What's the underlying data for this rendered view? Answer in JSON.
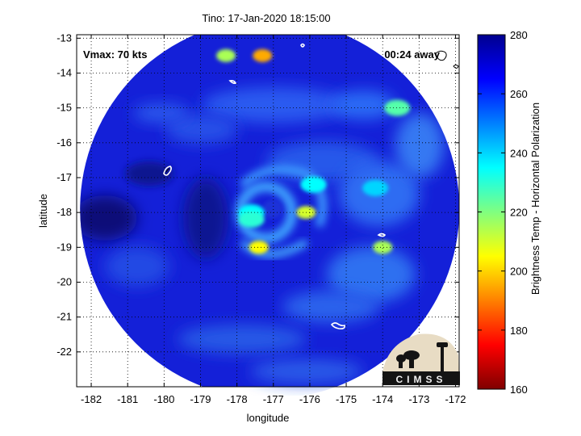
{
  "title": "Tino: 17-Jan-2020 18:15:00",
  "annotations": {
    "vmax": "Vmax: 70 kts",
    "time_away": "00:24 away"
  },
  "logo_text": "CIMSS",
  "colors": {
    "colormap": [
      "#7f0000",
      "#ff0000",
      "#ff8000",
      "#ffff00",
      "#80ff80",
      "#00ffff",
      "#0080ff",
      "#0000ff",
      "#00008f"
    ]
  },
  "chart_data": {
    "type": "heatmap",
    "title": "Tino: 17-Jan-2020 18:15:00",
    "xlabel": "longitude",
    "ylabel": "latitude",
    "xlim": [
      -182.4,
      -171.9
    ],
    "ylim": [
      -23,
      -12.9
    ],
    "x_ticks": [
      "-182",
      "-181",
      "-180",
      "-179",
      "-178",
      "-177",
      "-176",
      "-175",
      "-174",
      "-173",
      "-172"
    ],
    "y_ticks": [
      "-13",
      "-14",
      "-15",
      "-16",
      "-17",
      "-18",
      "-19",
      "-20",
      "-21",
      "-22"
    ],
    "grid": true,
    "colorbar": {
      "label": "Brightness Temp - Horizontal Polarization",
      "range": [
        160,
        280
      ],
      "ticks": [
        "160",
        "180",
        "200",
        "220",
        "240",
        "260",
        "280"
      ]
    },
    "swath": {
      "center_lon": -177.1,
      "center_lat": -17.9,
      "coverage": "circular"
    },
    "storm_center": {
      "lon": -177.2,
      "lat": -18.0
    },
    "cold_features": [
      {
        "lon": -177.6,
        "lat": -18.0,
        "tb": 235
      },
      {
        "lon": -177.6,
        "lat": -18.2,
        "tb": 230
      },
      {
        "lon": -177.4,
        "lat": -19.0,
        "tb": 205
      },
      {
        "lon": -176.1,
        "lat": -18.0,
        "tb": 210
      },
      {
        "lon": -174.0,
        "lat": -19.0,
        "tb": 215
      },
      {
        "lon": -178.3,
        "lat": -13.5,
        "tb": 215
      },
      {
        "lon": -177.3,
        "lat": -13.5,
        "tb": 195
      },
      {
        "lon": -173.6,
        "lat": -15.0,
        "tb": 225
      },
      {
        "lon": -175.9,
        "lat": -17.2,
        "tb": 235
      },
      {
        "lon": -174.2,
        "lat": -17.3,
        "tb": 240
      }
    ]
  }
}
